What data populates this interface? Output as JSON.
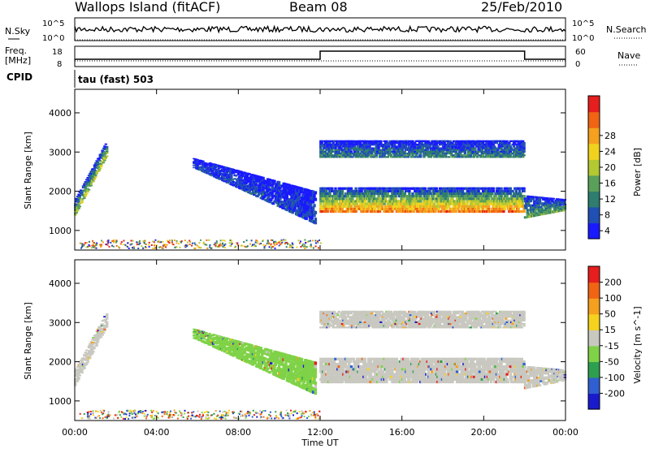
{
  "header": {
    "station": "Wallops Island (fitACF)",
    "beam": "Beam 08",
    "date": "25/Feb/2010",
    "cpid_label": "CPID",
    "cpid_value": "tau (fast) 503"
  },
  "noise_panel": {
    "left_label": "N.Sky",
    "right_label": "N.Search",
    "left_ticks": [
      "10^5",
      "10^0"
    ],
    "right_ticks": [
      "10^5",
      "10^0"
    ]
  },
  "freq_panel": {
    "left_label_1": "Freq.",
    "left_label_2": "[MHz]",
    "right_label": "Nave",
    "left_ticks": [
      "18",
      "8"
    ],
    "right_ticks": [
      "60",
      "0"
    ]
  },
  "chart_data": [
    {
      "type": "heatmap",
      "name": "power",
      "ylabel": "Slant Range [km]",
      "yticks": [
        "1000",
        "2000",
        "3000",
        "4000"
      ],
      "ylim": [
        500,
        4600
      ],
      "xlim": [
        0,
        24
      ],
      "colorbar_label": "Power [dB]",
      "colorbar_ticks": [
        "4",
        "8",
        "12",
        "16",
        "20",
        "24",
        "28"
      ],
      "colorbar_colors": [
        "#1a1aff",
        "#2050b4",
        "#2e7d6e",
        "#5aa05a",
        "#b4c832",
        "#f0d21e",
        "#f5a01e",
        "#f06414",
        "#e61e1e"
      ],
      "echo_regions": [
        {
          "x": [
            0.0,
            1.6
          ],
          "y_low": [
            1350,
            2900
          ],
          "y_high": [
            1750,
            3300
          ],
          "level": 0.5
        },
        {
          "x": [
            5.8,
            11.8
          ],
          "y_low": [
            2600,
            1150
          ],
          "y_high": [
            2850,
            2000
          ],
          "level": 0.15
        },
        {
          "x": [
            12.0,
            22.0
          ],
          "y_low": [
            1450,
            1450
          ],
          "y_high": [
            2100,
            2100
          ],
          "level": 0.8
        },
        {
          "x": [
            12.0,
            22.0
          ],
          "y_low": [
            2850,
            2850
          ],
          "y_high": [
            3300,
            3300
          ],
          "level": 0.3
        },
        {
          "x": [
            22.0,
            24.0
          ],
          "y_low": [
            1300,
            1500
          ],
          "y_high": [
            1900,
            1800
          ],
          "level": 0.4
        }
      ]
    },
    {
      "type": "heatmap",
      "name": "velocity",
      "ylabel": "Slant Range [km]",
      "yticks": [
        "1000",
        "2000",
        "3000",
        "4000"
      ],
      "ylim": [
        500,
        4600
      ],
      "xlim": [
        0,
        24
      ],
      "colorbar_label": "Velocity [m s^-1]",
      "colorbar_ticks": [
        "200",
        "100",
        "50",
        "15",
        "-15",
        "-50",
        "-100",
        "-200"
      ],
      "colorbar_colors": [
        "#1a1acd",
        "#2f5fd0",
        "#2e9f4f",
        "#7fd247",
        "#c8c8c0",
        "#f5d21e",
        "#f5a01e",
        "#f06414",
        "#e61e1e"
      ],
      "echo_regions": [
        {
          "x": [
            0.0,
            1.6
          ],
          "y_low": [
            1350,
            2900
          ],
          "y_high": [
            1750,
            3300
          ],
          "color": "#c8c8c0"
        },
        {
          "x": [
            5.8,
            11.8
          ],
          "y_low": [
            2600,
            1150
          ],
          "y_high": [
            2850,
            2000
          ],
          "color": "#7fd247"
        },
        {
          "x": [
            12.0,
            22.0
          ],
          "y_low": [
            1450,
            1450
          ],
          "y_high": [
            2100,
            2100
          ],
          "color": "#c8c8c0"
        },
        {
          "x": [
            12.0,
            22.0
          ],
          "y_low": [
            2850,
            2850
          ],
          "y_high": [
            3300,
            3300
          ],
          "color": "#c8c8c0"
        },
        {
          "x": [
            22.0,
            24.0
          ],
          "y_low": [
            1300,
            1500
          ],
          "y_high": [
            1900,
            1800
          ],
          "color": "#c8c8c0"
        }
      ]
    }
  ],
  "xaxis": {
    "label": "Time UT",
    "ticks": [
      "00:00",
      "04:00",
      "08:00",
      "12:00",
      "16:00",
      "20:00",
      "00:00"
    ]
  }
}
